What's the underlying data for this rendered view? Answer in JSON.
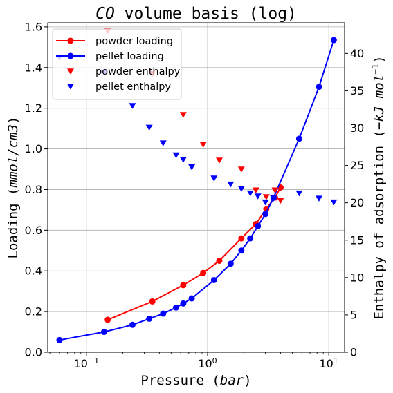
{
  "chart_data": {
    "type": "line",
    "title": "CO volume basis (log)",
    "title_parts": [
      {
        "text": "CO",
        "italic": true
      },
      {
        "text": " volume basis (log)",
        "italic": false
      }
    ],
    "xlabel": "Pressure (bar)",
    "xlabel_parts": [
      {
        "text": "Pressure (",
        "italic": false
      },
      {
        "text": "bar",
        "italic": true
      },
      {
        "text": ")",
        "italic": false
      }
    ],
    "xscale": "log",
    "xlim": [
      0.048,
      13.5
    ],
    "xticks": [
      {
        "value": 0.1,
        "base": "10",
        "exp": "−1"
      },
      {
        "value": 1,
        "base": "10",
        "exp": "0"
      },
      {
        "value": 10,
        "base": "10",
        "exp": "1"
      }
    ],
    "ylabel": "Loading (mmol/cm3)",
    "ylabel_parts": [
      {
        "text": "Loading (",
        "italic": false
      },
      {
        "text": "mmol/cm3",
        "italic": true
      },
      {
        "text": ")",
        "italic": false
      }
    ],
    "ylim": [
      0,
      1.62
    ],
    "yticks": [
      "0.0",
      "0.2",
      "0.4",
      "0.6",
      "0.8",
      "1.0",
      "1.2",
      "1.4",
      "1.6"
    ],
    "y2label": "Enthalpy of adsorption (−kJ mol−1)",
    "y2label_parts": [
      {
        "text": "Enthalpy of adsorption (",
        "italic": false
      },
      {
        "text": "−kJ mol",
        "italic": true
      },
      {
        "text": "−1",
        "italic": false,
        "sup": true
      },
      {
        "text": ")",
        "italic": false
      }
    ],
    "y2lim": [
      0,
      44.1
    ],
    "y2ticks": [
      "0",
      "5",
      "10",
      "15",
      "20",
      "25",
      "30",
      "35",
      "40"
    ],
    "grid": true,
    "legend_position": "top-left",
    "series": [
      {
        "name": "powder loading",
        "axis": "left",
        "style": "line-circle",
        "color": "#ff0000",
        "x": [
          0.15,
          0.35,
          0.63,
          0.92,
          1.25,
          1.9,
          2.5,
          3.05,
          3.6,
          4.0
        ],
        "y": [
          0.16,
          0.25,
          0.33,
          0.39,
          0.45,
          0.56,
          0.63,
          0.705,
          0.76,
          0.81
        ]
      },
      {
        "name": "pellet loading",
        "axis": "left",
        "style": "line-circle",
        "color": "#0000ff",
        "x": [
          0.06,
          0.14,
          0.24,
          0.33,
          0.43,
          0.55,
          0.63,
          0.74,
          1.13,
          1.55,
          1.9,
          2.25,
          2.6,
          3.0,
          3.5,
          5.7,
          8.3,
          11.0
        ],
        "y": [
          0.06,
          0.1,
          0.135,
          0.165,
          0.19,
          0.22,
          0.24,
          0.265,
          0.355,
          0.435,
          0.5,
          0.56,
          0.62,
          0.68,
          0.76,
          1.05,
          1.305,
          1.535
        ]
      },
      {
        "name": "powder enthalpy",
        "axis": "right",
        "style": "triangle-down",
        "color": "#ff0000",
        "x": [
          0.15,
          0.35,
          0.63,
          0.92,
          1.25,
          1.9,
          2.5,
          3.05,
          3.6,
          4.0
        ],
        "y": [
          43.0,
          37.3,
          31.8,
          27.8,
          25.7,
          24.5,
          21.7,
          20.8,
          21.7,
          20.3
        ]
      },
      {
        "name": "pellet enthalpy",
        "axis": "right",
        "style": "triangle-down",
        "color": "#0000ff",
        "x": [
          0.06,
          0.14,
          0.24,
          0.33,
          0.43,
          0.55,
          0.63,
          0.74,
          1.13,
          1.55,
          1.9,
          2.25,
          2.6,
          3.0,
          3.5,
          5.7,
          8.3,
          11.0
        ],
        "y": [
          39.5,
          37.4,
          33.0,
          30.1,
          28.0,
          26.4,
          25.8,
          24.8,
          23.3,
          22.5,
          21.9,
          21.3,
          20.9,
          20.1,
          20.6,
          21.3,
          20.6,
          20.1
        ]
      }
    ]
  }
}
